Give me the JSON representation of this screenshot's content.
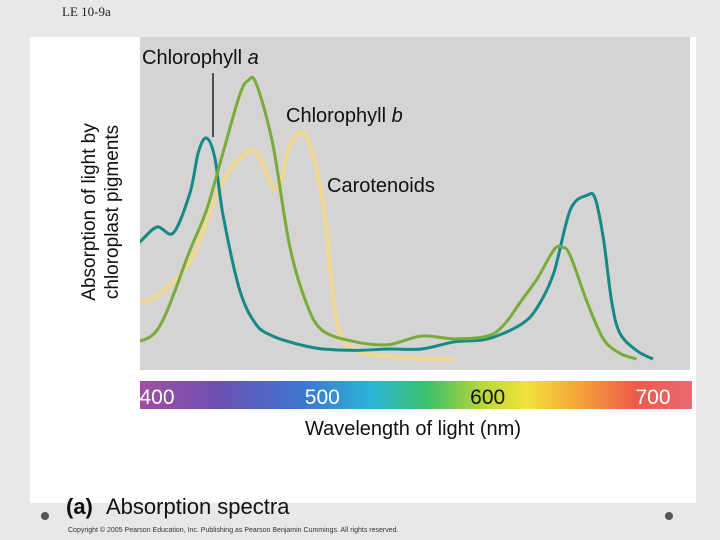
{
  "slide_label": "LE 10-9a",
  "caption": {
    "letter": "(a)",
    "text": "Absorption spectra"
  },
  "copyright": "Copyright © 2005 Pearson Education, Inc. Publishing as Pearson Benjamin Cummings. All rights reserved.",
  "colors": {
    "plot_background": "#d6d4d3",
    "chlorophyll_a": "#138a86",
    "chlorophyll_b": "#78ab3a",
    "carotenoids": "#f0d890"
  },
  "chart_data": {
    "type": "line",
    "title": "",
    "xlabel": "Wavelength of light (nm)",
    "ylabel": "Absorption of light by chloroplast pigments",
    "xlim": [
      380,
      750
    ],
    "ylim": [
      0,
      1
    ],
    "xticks": [
      400,
      500,
      600,
      700
    ],
    "xtick_labels": [
      "400",
      "500",
      "600",
      "700"
    ],
    "grid": false,
    "legend": "inline labels",
    "series": [
      {
        "name": "Chlorophyll a",
        "label_parts": [
          "Chlorophyll ",
          "a"
        ],
        "x": [
          380,
          390,
          400,
          410,
          420,
          425,
          430,
          435,
          440,
          450,
          460,
          470,
          480,
          490,
          500,
          520,
          540,
          560,
          580,
          600,
          620,
          630,
          640,
          650,
          660,
          665,
          670,
          675,
          680,
          690,
          700
        ],
        "y": [
          0.36,
          0.41,
          0.46,
          0.44,
          0.58,
          0.72,
          0.77,
          0.7,
          0.5,
          0.24,
          0.12,
          0.08,
          0.06,
          0.045,
          0.035,
          0.03,
          0.035,
          0.035,
          0.06,
          0.07,
          0.12,
          0.18,
          0.3,
          0.52,
          0.57,
          0.56,
          0.42,
          0.2,
          0.09,
          0.03,
          0.0
        ]
      },
      {
        "name": "Chlorophyll b",
        "label_parts": [
          "Chlorophyll ",
          "b"
        ],
        "x": [
          380,
          400,
          420,
          430,
          440,
          450,
          455,
          460,
          470,
          480,
          490,
          500,
          520,
          540,
          560,
          580,
          600,
          610,
          620,
          630,
          640,
          645,
          650,
          660,
          670,
          680,
          690
        ],
        "y": [
          0.06,
          0.1,
          0.38,
          0.52,
          0.72,
          0.92,
          0.97,
          0.96,
          0.75,
          0.4,
          0.2,
          0.1,
          0.06,
          0.05,
          0.08,
          0.07,
          0.08,
          0.12,
          0.2,
          0.28,
          0.38,
          0.39,
          0.36,
          0.2,
          0.07,
          0.02,
          0.0
        ]
      },
      {
        "name": "Carotenoids",
        "label_parts": [
          "Carotenoids",
          ""
        ],
        "x": [
          380,
          400,
          420,
          430,
          440,
          450,
          460,
          470,
          475,
          480,
          490,
          500,
          505,
          510,
          520,
          540,
          560,
          580
        ],
        "y": [
          0.18,
          0.22,
          0.34,
          0.48,
          0.62,
          0.7,
          0.72,
          0.6,
          0.62,
          0.74,
          0.78,
          0.56,
          0.3,
          0.1,
          0.03,
          0.01,
          0.0,
          0.0
        ]
      }
    ]
  }
}
